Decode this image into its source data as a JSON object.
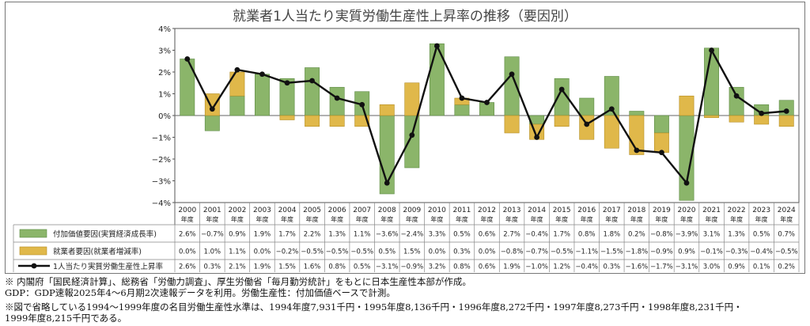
{
  "chart_data": {
    "type": "bar",
    "title": "就業者1人当たり実質労働生産性上昇率の推移（要因別）",
    "categories": [
      "2000",
      "2001",
      "2002",
      "2003",
      "2004",
      "2005",
      "2006",
      "2007",
      "2008",
      "2009",
      "2010",
      "2011",
      "2012",
      "2013",
      "2014",
      "2015",
      "2016",
      "2017",
      "2018",
      "2019",
      "2020",
      "2021",
      "2022",
      "2023",
      "2024"
    ],
    "category_suffix": "年度",
    "y_ticks": [
      "4%",
      "3%",
      "2%",
      "1%",
      "0%",
      "−1%",
      "−2%",
      "−3%",
      "−4%"
    ],
    "ylim": [
      -4,
      4
    ],
    "stacked": true,
    "grid": false,
    "series": [
      {
        "name": "付加価値要因(実質経済成長率)",
        "kind": "bar",
        "color": "#8bb56a",
        "values": [
          2.6,
          -0.7,
          0.9,
          1.9,
          1.7,
          2.2,
          1.3,
          1.1,
          -3.6,
          -2.4,
          3.3,
          0.5,
          0.6,
          2.7,
          -0.4,
          1.7,
          0.8,
          1.8,
          0.2,
          -0.8,
          -3.9,
          3.1,
          1.3,
          0.5,
          0.7
        ],
        "labels": [
          "2.6%",
          "−0.7%",
          "0.9%",
          "1.9%",
          "1.7%",
          "2.2%",
          "1.3%",
          "1.1%",
          "−3.6%",
          "−2.4%",
          "3.3%",
          "0.5%",
          "0.6%",
          "2.7%",
          "−0.4%",
          "1.7%",
          "0.8%",
          "1.8%",
          "0.2%",
          "−0.8%",
          "−3.9%",
          "3.1%",
          "1.3%",
          "0.5%",
          "0.7%"
        ]
      },
      {
        "name": "就業者要因(就業者増減率)",
        "kind": "bar",
        "color": "#e0b84a",
        "values": [
          0.0,
          1.0,
          1.1,
          0.0,
          -0.2,
          -0.5,
          -0.5,
          -0.5,
          0.5,
          1.5,
          0.0,
          0.3,
          0.0,
          -0.8,
          -0.7,
          -0.5,
          -1.1,
          -1.5,
          -1.8,
          -0.9,
          0.9,
          -0.1,
          -0.3,
          -0.4,
          -0.5
        ],
        "labels": [
          "0.0%",
          "1.0%",
          "1.1%",
          "0.0%",
          "−0.2%",
          "−0.5%",
          "−0.5%",
          "−0.5%",
          "0.5%",
          "1.5%",
          "0.0%",
          "0.3%",
          "0.0%",
          "−0.8%",
          "−0.7%",
          "−0.5%",
          "−1.1%",
          "−1.5%",
          "−1.8%",
          "−0.9%",
          "0.9%",
          "−0.1%",
          "−0.3%",
          "−0.4%",
          "−0.5%"
        ]
      },
      {
        "name": "1人当たり実質労働生産性上昇率",
        "kind": "line",
        "color": "#111111",
        "values": [
          2.6,
          0.3,
          2.1,
          1.9,
          1.5,
          1.6,
          0.8,
          0.5,
          -3.1,
          -0.9,
          3.2,
          0.8,
          0.6,
          1.9,
          -1.0,
          1.2,
          -0.4,
          0.3,
          -1.6,
          -1.7,
          -3.1,
          3.0,
          0.9,
          0.1,
          0.2
        ],
        "labels": [
          "2.6%",
          "0.3%",
          "2.1%",
          "1.9%",
          "1.5%",
          "1.6%",
          "0.8%",
          "0.5%",
          "−3.1%",
          "−0.9%",
          "3.2%",
          "0.8%",
          "0.6%",
          "1.9%",
          "−1.0%",
          "1.2%",
          "−0.4%",
          "0.3%",
          "−1.6%",
          "−1.7%",
          "−3.1%",
          "3.0%",
          "0.9%",
          "0.1%",
          "0.2%"
        ]
      }
    ]
  },
  "notes": [
    "※ 内閣府「国民経済計算」、総務省「労働力調査」、厚生労働省「毎月勤労統計」をもとに日本生産性本部が作成。",
    "GDP：GDP速報2025年4～6月期2次速報データを利用。労働生産性：付加価値ベースで計測。",
    "※図で省略している1994～1999年度の名目労働生産性水準は、1994年度7,931千円・1995年度8,136千円・1996年度8,272千円・1997年度8,273千円・1998年度8,231千円・",
    "1999年度8,215千円である。"
  ]
}
